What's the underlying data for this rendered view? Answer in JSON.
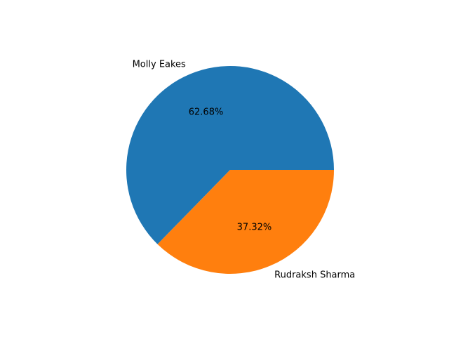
{
  "chart_data": {
    "type": "pie",
    "categories": [
      "Molly Eakes",
      "Rudraksh Sharma"
    ],
    "values": [
      62.68,
      37.32
    ],
    "value_labels": [
      "62.68%",
      "37.32%"
    ],
    "colors": [
      "#1f77b4",
      "#ff7f0e"
    ],
    "title": "",
    "legend": "none"
  }
}
